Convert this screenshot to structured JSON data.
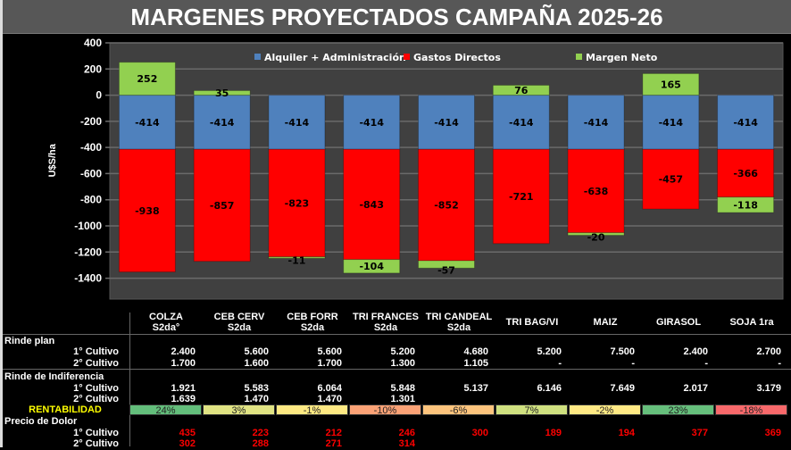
{
  "title": "MARGENES PROYECTADOS CAMPAÑA 2025-26",
  "chart_data": {
    "type": "bar",
    "stacked": true,
    "title": "MARGENES PROYECTADOS CAMPAÑA 2025-26",
    "ylabel": "U$S/ha",
    "ylim": [
      -1560,
      400
    ],
    "yticks": [
      400,
      200,
      0,
      -200,
      -400,
      -600,
      -800,
      -1000,
      -1200,
      -1400
    ],
    "grid": true,
    "legend": "top",
    "categories": [
      "COLZA",
      "CEB CERV",
      "CEB FORR",
      "TRI FRANCES",
      "TRI CANDEAL",
      "TRI BAG/VI",
      "MAIZ",
      "GIRASOL",
      "SOJA 1ra"
    ],
    "series": [
      {
        "name": "Alquiler + Administración",
        "color": "#4f81bd",
        "values": [
          -414,
          -414,
          -414,
          -414,
          -414,
          -414,
          -414,
          -414,
          -414
        ]
      },
      {
        "name": "Gastos Directos",
        "color": "#ff0000",
        "values": [
          -938,
          -857,
          -823,
          -843,
          -852,
          -721,
          -638,
          -457,
          -366
        ]
      },
      {
        "name": "Margen Neto",
        "color": "#92d050",
        "values": [
          252,
          35,
          -11,
          -104,
          -57,
          76,
          -20,
          165,
          -118
        ]
      }
    ]
  },
  "table": {
    "headers": [
      [
        "COLZA",
        "S2da°"
      ],
      [
        "CEB CERV",
        "S2da"
      ],
      [
        "CEB FORR",
        "S2da"
      ],
      [
        "TRI FRANCES",
        "S2da"
      ],
      [
        "TRI CANDEAL",
        "S2da"
      ],
      [
        "TRI BAG/VI",
        ""
      ],
      [
        "MAIZ",
        ""
      ],
      [
        "GIRASOL",
        ""
      ],
      [
        "SOJA 1ra",
        ""
      ]
    ],
    "sections": {
      "rinde_plan": "Rinde plan",
      "rinde_indif": "Rinde de Indiferencia",
      "rentabilidad": "RENTABILIDAD",
      "precio": "Precio de Dolor"
    },
    "sub1": "1° Cultivo",
    "sub2": "2° Cultivo",
    "rinde_plan_1": [
      "2.400",
      "5.600",
      "5.600",
      "5.200",
      "4.680",
      "5.200",
      "7.500",
      "2.400",
      "2.700"
    ],
    "rinde_plan_2": [
      "1.700",
      "1.600",
      "1.700",
      "1.300",
      "1.105",
      "-",
      "-",
      "-",
      "-"
    ],
    "rinde_indif_1": [
      "1.921",
      "5.583",
      "6.064",
      "5.848",
      "5.137",
      "6.146",
      "7.649",
      "2.017",
      "3.179"
    ],
    "rinde_indif_2": [
      "1.639",
      "1.470",
      "1.470",
      "1.301",
      "",
      "",
      "",
      "",
      ""
    ],
    "rentabilidad": [
      "24%",
      "3%",
      "-1%",
      "-10%",
      "-6%",
      "7%",
      "-2%",
      "23%",
      "-18%"
    ],
    "rentabilidad_colors": [
      "#63be7b",
      "#e0e383",
      "#fee983",
      "#fba276",
      "#fdc47d",
      "#cfe07f",
      "#ffe984",
      "#66bf7c",
      "#f8696b"
    ],
    "precio_1": [
      "435",
      "223",
      "212",
      "246",
      "300",
      "189",
      "194",
      "377",
      "369"
    ],
    "precio_2": [
      "302",
      "288",
      "271",
      "314",
      "",
      "",
      "",
      "",
      ""
    ]
  }
}
